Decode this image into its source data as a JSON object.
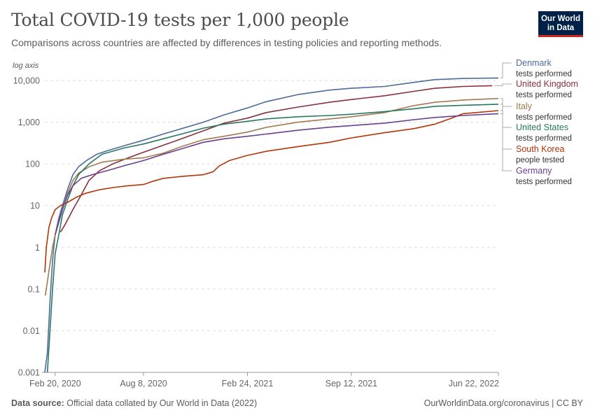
{
  "header": {
    "title": "Total COVID-19 tests per 1,000 people",
    "subtitle": "Comparisons across countries are affected by differences in testing policies and reporting methods.",
    "logo_line1": "Our World",
    "logo_line2": "in Data"
  },
  "footer": {
    "source_label": "Data source:",
    "source_text": "Official data collated by Our World in Data (2022)",
    "credit": "OurWorldinData.org/coronavirus | CC BY"
  },
  "colors": {
    "Denmark": "#4c6a9c",
    "United Kingdom": "#883039",
    "Italy": "#a2794f",
    "United States": "#28785f",
    "South Korea": "#b13507",
    "Germany": "#6b3d8d"
  },
  "chart_data": {
    "type": "line",
    "title": "Total COVID-19 tests per 1,000 people",
    "subtitle": "Comparisons across countries are affected by differences in testing policies and reporting methods.",
    "y_axis_note": "log axis",
    "y_scale": "log",
    "ylim": [
      0.001,
      10000
    ],
    "xlim": [
      "2020-01-31",
      "2022-06-22"
    ],
    "grid": "horizontal",
    "legend_placement": "right",
    "y_ticks": [
      {
        "value": 0.001,
        "label": "0.001"
      },
      {
        "value": 0.01,
        "label": "0.01"
      },
      {
        "value": 0.1,
        "label": "0.1"
      },
      {
        "value": 1,
        "label": "1"
      },
      {
        "value": 10,
        "label": "10"
      },
      {
        "value": 100,
        "label": "100"
      },
      {
        "value": 1000,
        "label": "1,000"
      },
      {
        "value": 10000,
        "label": "10,000"
      }
    ],
    "x_ticks": [
      {
        "value": "2020-02-20",
        "label": "Feb 20, 2020"
      },
      {
        "value": "2020-08-08",
        "label": "Aug 8, 2020"
      },
      {
        "value": "2021-02-24",
        "label": "Feb 24, 2021"
      },
      {
        "value": "2021-09-12",
        "label": "Sep 12, 2021"
      },
      {
        "value": "2022-06-22",
        "label": "Jun 22, 2022"
      }
    ],
    "series": [
      {
        "name": "Denmark",
        "metric": "tests performed",
        "points": [
          [
            "2020-01-31",
            0.001
          ],
          [
            "2020-02-05",
            0.003
          ],
          [
            "2020-02-10",
            0.05
          ],
          [
            "2020-02-15",
            0.5
          ],
          [
            "2020-02-20",
            2
          ],
          [
            "2020-02-27",
            5
          ],
          [
            "2020-03-05",
            10
          ],
          [
            "2020-03-15",
            25
          ],
          [
            "2020-03-25",
            55
          ],
          [
            "2020-04-05",
            85
          ],
          [
            "2020-04-20",
            120
          ],
          [
            "2020-05-10",
            170
          ],
          [
            "2020-06-01",
            210
          ],
          [
            "2020-07-01",
            270
          ],
          [
            "2020-08-08",
            370
          ],
          [
            "2020-09-15",
            520
          ],
          [
            "2020-10-20",
            700
          ],
          [
            "2020-12-01",
            1000
          ],
          [
            "2021-01-10",
            1500
          ],
          [
            "2021-02-24",
            2200
          ],
          [
            "2021-04-01",
            3100
          ],
          [
            "2021-06-01",
            4600
          ],
          [
            "2021-08-01",
            5900
          ],
          [
            "2021-09-12",
            6500
          ],
          [
            "2021-11-15",
            7200
          ],
          [
            "2022-01-10",
            9000
          ],
          [
            "2022-02-20",
            10500
          ],
          [
            "2022-04-15",
            11200
          ],
          [
            "2022-06-22",
            11500
          ]
        ]
      },
      {
        "name": "United Kingdom",
        "metric": "tests performed",
        "points": [
          [
            "2020-03-01",
            2.3
          ],
          [
            "2020-03-10",
            3.5
          ],
          [
            "2020-03-25",
            8
          ],
          [
            "2020-04-10",
            18
          ],
          [
            "2020-04-25",
            40
          ],
          [
            "2020-05-15",
            68
          ],
          [
            "2020-06-10",
            100
          ],
          [
            "2020-07-10",
            140
          ],
          [
            "2020-08-08",
            190
          ],
          [
            "2020-09-15",
            280
          ],
          [
            "2020-10-20",
            400
          ],
          [
            "2020-12-01",
            620
          ],
          [
            "2021-01-10",
            950
          ],
          [
            "2021-02-24",
            1250
          ],
          [
            "2021-04-01",
            1700
          ],
          [
            "2021-06-01",
            2300
          ],
          [
            "2021-08-01",
            3000
          ],
          [
            "2021-09-12",
            3500
          ],
          [
            "2021-11-15",
            4300
          ],
          [
            "2022-01-10",
            5500
          ],
          [
            "2022-02-20",
            6500
          ],
          [
            "2022-04-15",
            7200
          ],
          [
            "2022-06-10",
            7500
          ]
        ]
      },
      {
        "name": "Italy",
        "metric": "tests performed",
        "points": [
          [
            "2020-02-01",
            0.07
          ],
          [
            "2020-02-05",
            0.15
          ],
          [
            "2020-02-10",
            0.4
          ],
          [
            "2020-02-15",
            1
          ],
          [
            "2020-02-20",
            2
          ],
          [
            "2020-02-27",
            4
          ],
          [
            "2020-03-05",
            8
          ],
          [
            "2020-03-15",
            20
          ],
          [
            "2020-03-25",
            40
          ],
          [
            "2020-04-05",
            60
          ],
          [
            "2020-04-25",
            85
          ],
          [
            "2020-05-20",
            110
          ],
          [
            "2020-07-01",
            130
          ],
          [
            "2020-08-08",
            140
          ],
          [
            "2020-09-15",
            180
          ],
          [
            "2020-10-20",
            260
          ],
          [
            "2020-12-01",
            380
          ],
          [
            "2021-01-10",
            460
          ],
          [
            "2021-02-24",
            580
          ],
          [
            "2021-04-01",
            750
          ],
          [
            "2021-06-01",
            1000
          ],
          [
            "2021-08-01",
            1200
          ],
          [
            "2021-09-12",
            1350
          ],
          [
            "2021-11-15",
            1700
          ],
          [
            "2022-01-10",
            2500
          ],
          [
            "2022-02-20",
            3000
          ],
          [
            "2022-04-15",
            3400
          ],
          [
            "2022-06-22",
            3700
          ]
        ]
      },
      {
        "name": "United States",
        "metric": "tests performed",
        "points": [
          [
            "2020-02-05",
            0.001
          ],
          [
            "2020-02-10",
            0.01
          ],
          [
            "2020-02-15",
            0.1
          ],
          [
            "2020-02-20",
            0.7
          ],
          [
            "2020-02-27",
            2
          ],
          [
            "2020-03-05",
            6
          ],
          [
            "2020-03-15",
            14
          ],
          [
            "2020-03-25",
            30
          ],
          [
            "2020-04-05",
            55
          ],
          [
            "2020-04-25",
            100
          ],
          [
            "2020-05-20",
            170
          ],
          [
            "2020-07-01",
            240
          ],
          [
            "2020-08-08",
            300
          ],
          [
            "2020-09-15",
            400
          ],
          [
            "2020-10-20",
            520
          ],
          [
            "2020-12-01",
            720
          ],
          [
            "2021-01-10",
            900
          ],
          [
            "2021-02-24",
            1050
          ],
          [
            "2021-04-01",
            1200
          ],
          [
            "2021-06-01",
            1350
          ],
          [
            "2021-08-01",
            1450
          ],
          [
            "2021-09-12",
            1550
          ],
          [
            "2021-11-15",
            1800
          ],
          [
            "2022-01-10",
            2100
          ],
          [
            "2022-02-20",
            2400
          ],
          [
            "2022-04-15",
            2550
          ],
          [
            "2022-06-22",
            2700
          ]
        ]
      },
      {
        "name": "South Korea",
        "metric": "people tested",
        "points": [
          [
            "2020-01-31",
            0.25
          ],
          [
            "2020-02-03",
            1
          ],
          [
            "2020-02-08",
            3
          ],
          [
            "2020-02-13",
            5
          ],
          [
            "2020-02-20",
            8
          ],
          [
            "2020-03-01",
            10
          ],
          [
            "2020-03-15",
            12
          ],
          [
            "2020-04-01",
            16
          ],
          [
            "2020-04-20",
            20
          ],
          [
            "2020-05-15",
            24
          ],
          [
            "2020-06-10",
            27
          ],
          [
            "2020-07-10",
            30
          ],
          [
            "2020-08-08",
            32
          ],
          [
            "2020-08-25",
            38
          ],
          [
            "2020-09-15",
            45
          ],
          [
            "2020-10-20",
            50
          ],
          [
            "2020-12-01",
            55
          ],
          [
            "2020-12-20",
            65
          ],
          [
            "2021-01-01",
            90
          ],
          [
            "2021-01-20",
            120
          ],
          [
            "2021-02-24",
            160
          ],
          [
            "2021-04-01",
            200
          ],
          [
            "2021-06-01",
            260
          ],
          [
            "2021-08-01",
            330
          ],
          [
            "2021-09-12",
            420
          ],
          [
            "2021-11-15",
            560
          ],
          [
            "2022-01-10",
            700
          ],
          [
            "2022-02-20",
            900
          ],
          [
            "2022-03-20",
            1200
          ],
          [
            "2022-04-15",
            1600
          ],
          [
            "2022-06-22",
            1900
          ]
        ]
      },
      {
        "name": "Germany",
        "metric": "tests performed",
        "points": [
          [
            "2020-02-20",
            2
          ],
          [
            "2020-03-05",
            8
          ],
          [
            "2020-03-15",
            18
          ],
          [
            "2020-03-25",
            30
          ],
          [
            "2020-04-10",
            45
          ],
          [
            "2020-05-01",
            55
          ],
          [
            "2020-06-01",
            70
          ],
          [
            "2020-07-01",
            90
          ],
          [
            "2020-08-08",
            120
          ],
          [
            "2020-09-15",
            170
          ],
          [
            "2020-10-20",
            230
          ],
          [
            "2020-12-01",
            330
          ],
          [
            "2021-01-10",
            400
          ],
          [
            "2021-02-24",
            460
          ],
          [
            "2021-04-01",
            520
          ],
          [
            "2021-06-01",
            640
          ],
          [
            "2021-08-01",
            760
          ],
          [
            "2021-09-12",
            830
          ],
          [
            "2021-11-15",
            950
          ],
          [
            "2022-01-10",
            1150
          ],
          [
            "2022-02-20",
            1300
          ],
          [
            "2022-04-15",
            1450
          ],
          [
            "2022-06-22",
            1600
          ]
        ]
      }
    ]
  }
}
